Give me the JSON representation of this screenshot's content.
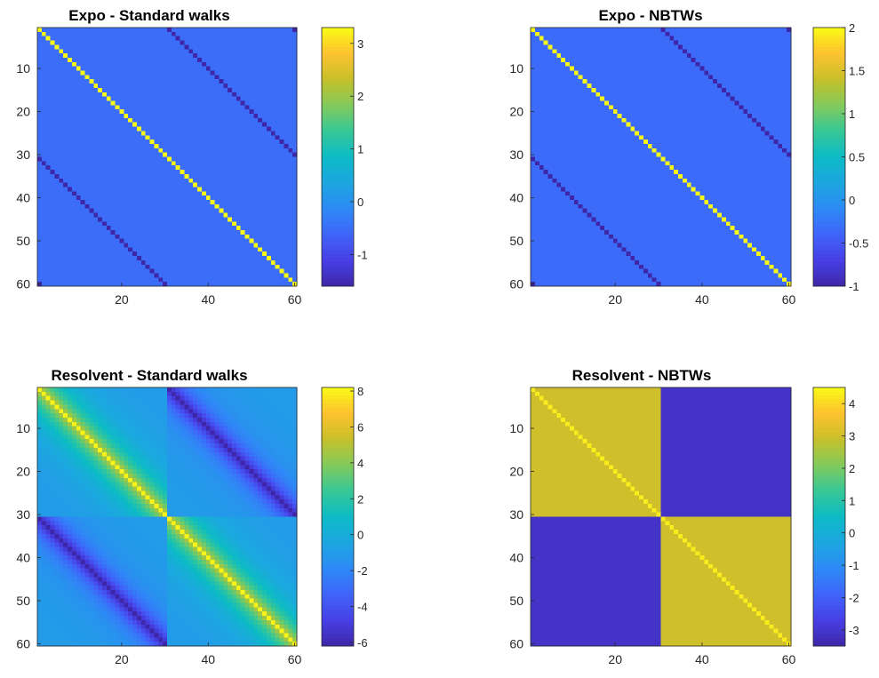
{
  "chart_data": [
    {
      "type": "heatmap",
      "title": "Expo - Standard walks",
      "xlabel": "",
      "ylabel": "",
      "size": 60,
      "xticks": [
        20,
        40,
        60
      ],
      "yticks": [
        10,
        20,
        30,
        40,
        50,
        60
      ],
      "pattern": {
        "diagonal": 3.3,
        "offdiag_lag30": -1.6,
        "background": -0.5,
        "corners": -1.6
      },
      "clim": [
        -1.6,
        3.3
      ],
      "colorbar_ticks": [
        3,
        2,
        1,
        0,
        -1
      ],
      "colormap": "parula",
      "grid": false
    },
    {
      "type": "heatmap",
      "title": "Expo - NBTWs",
      "xlabel": "",
      "ylabel": "",
      "size": 60,
      "xticks": [
        20,
        40,
        60
      ],
      "yticks": [
        10,
        20,
        30,
        40,
        50,
        60
      ],
      "pattern": {
        "diagonal": 2.0,
        "offdiag_lag30": -1.0,
        "background": -0.35,
        "corners": -1.0
      },
      "clim": [
        -1.0,
        2.0
      ],
      "colorbar_ticks": [
        2,
        1.5,
        1,
        0.5,
        0,
        -0.5,
        -1
      ],
      "colormap": "parula",
      "grid": false
    },
    {
      "type": "heatmap",
      "title": "Resolvent - Standard walks",
      "xlabel": "",
      "ylabel": "",
      "size": 60,
      "xticks": [
        20,
        40,
        60
      ],
      "yticks": [
        10,
        20,
        30,
        40,
        50,
        60
      ],
      "pattern": {
        "diagonal": 8.0,
        "near_diagonal": 4.5,
        "far_from_diagonal": -1.0,
        "offdiag_lag30": -6.2,
        "block_size": 30
      },
      "clim": [
        -6.2,
        8.2
      ],
      "colorbar_ticks": [
        8,
        6,
        4,
        2,
        0,
        -2,
        -4,
        -6
      ],
      "colormap": "parula",
      "grid": false
    },
    {
      "type": "heatmap",
      "title": "Resolvent - NBTWs",
      "xlabel": "",
      "ylabel": "",
      "size": 60,
      "xticks": [
        20,
        40,
        60
      ],
      "yticks": [
        10,
        20,
        30,
        40,
        50,
        60
      ],
      "pattern": {
        "diagonal": 4.3,
        "diagonal_blocks": 3.0,
        "offdiagonal_blocks": -3.1,
        "block_size": 30
      },
      "clim": [
        -3.5,
        4.5
      ],
      "colorbar_ticks": [
        4,
        3,
        2,
        1,
        0,
        -1,
        -2,
        -3
      ],
      "colormap": "parula",
      "grid": false
    }
  ]
}
